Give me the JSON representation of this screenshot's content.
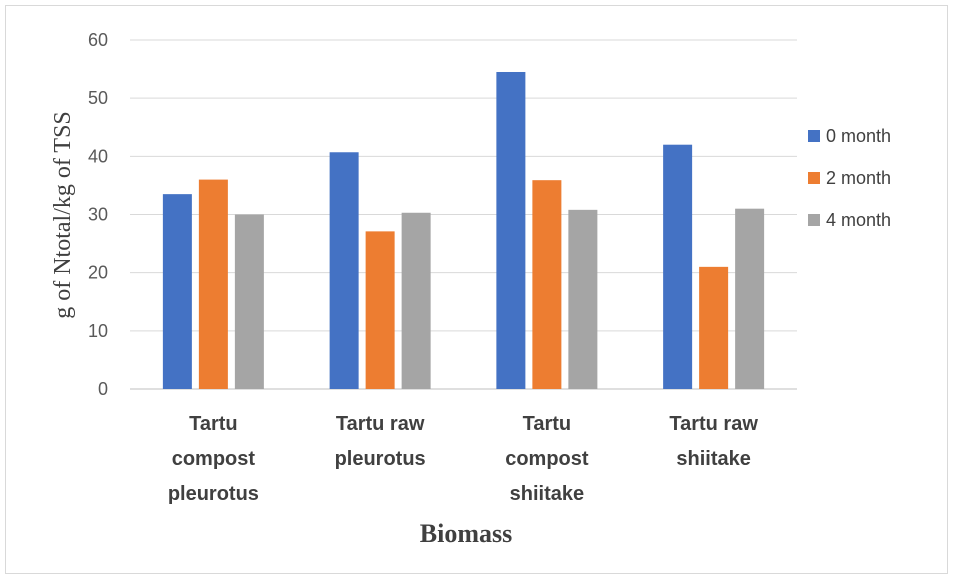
{
  "chart_data": {
    "type": "bar",
    "categories": [
      [
        "Tartu",
        "compost",
        "pleurotus"
      ],
      [
        "Tartu raw",
        "pleurotus"
      ],
      [
        "Tartu",
        "compost",
        "shiitake"
      ],
      [
        "Tartu raw",
        "shiitake"
      ]
    ],
    "series": [
      {
        "name": "0 month",
        "color": "#4472c4",
        "values": [
          33.5,
          40.7,
          54.5,
          42.0
        ]
      },
      {
        "name": "2 month",
        "color": "#ed7d31",
        "values": [
          36.0,
          27.1,
          35.9,
          21.0
        ]
      },
      {
        "name": "4 month",
        "color": "#a5a5a5",
        "values": [
          30.0,
          30.3,
          30.8,
          31.0
        ]
      }
    ],
    "ylim": [
      0,
      60
    ],
    "yticks": [
      "0",
      "10",
      "20",
      "30",
      "40",
      "50",
      "60"
    ],
    "xlabel": "Biomass",
    "ylabel": "g of Ntotal/kg of TSS",
    "grid": true,
    "legend_position": "right"
  }
}
